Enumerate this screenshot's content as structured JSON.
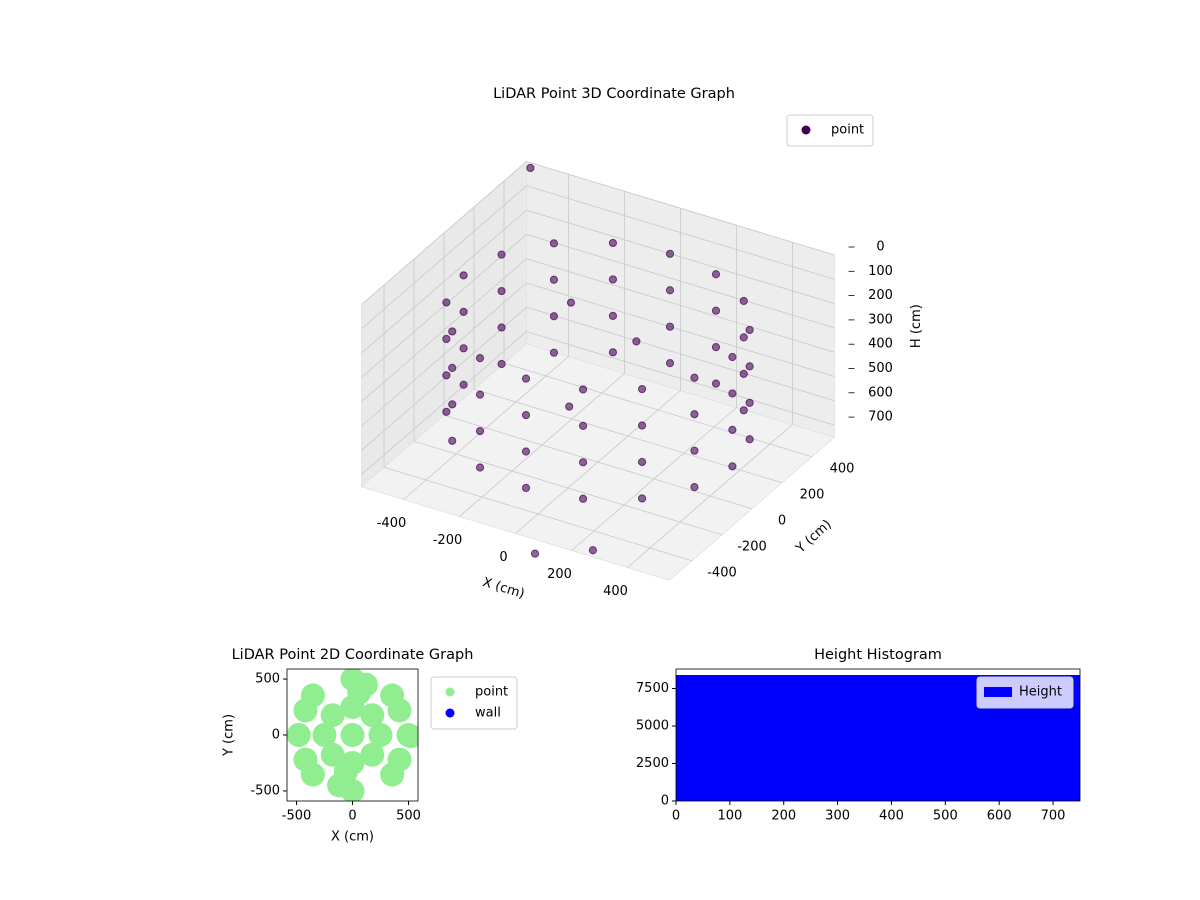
{
  "chart_data": [
    {
      "type": "scatter3d",
      "title": "LiDAR Point 3D Coordinate Graph",
      "xlabel": "X (cm)",
      "ylabel": "Y (cm)",
      "zlabel": "H (cm)",
      "xlim": [
        -550,
        550
      ],
      "ylim": [
        -550,
        550
      ],
      "zlim": [
        750,
        0
      ],
      "xticks": [
        -400,
        -200,
        0,
        200,
        400
      ],
      "yticks": [
        -400,
        -200,
        0,
        200,
        400
      ],
      "zticks": [
        0,
        100,
        200,
        300,
        400,
        500,
        600,
        700
      ],
      "grid": true,
      "legend": "upper right",
      "series": [
        {
          "name": "point",
          "color": "#440154",
          "x": [
            480,
            443,
            339,
            184,
            0,
            -184,
            -339,
            -443,
            -480,
            -443,
            -339,
            -184,
            0,
            184,
            339,
            443,
            480,
            443,
            339,
            184,
            0,
            -184,
            -339,
            -443,
            -480,
            -443,
            -339,
            -184,
            0,
            184,
            339,
            443,
            480,
            443,
            339,
            184,
            0,
            -184,
            -339,
            -443,
            -480,
            -443,
            -339,
            -184,
            0,
            184,
            339,
            443,
            480,
            443,
            339,
            184,
            0,
            -184,
            -339,
            -443,
            -480,
            -443,
            -339,
            -184,
            0,
            184,
            339,
            443,
            -150,
            -60,
            30,
            -520,
            150,
            330
          ],
          "y": [
            0,
            184,
            339,
            443,
            480,
            443,
            339,
            184,
            0,
            -184,
            -339,
            -443,
            -480,
            -443,
            -339,
            -184,
            0,
            184,
            339,
            443,
            480,
            443,
            339,
            184,
            0,
            -184,
            -339,
            -443,
            -480,
            -443,
            -339,
            -184,
            0,
            184,
            339,
            443,
            480,
            443,
            339,
            184,
            0,
            -184,
            -339,
            -443,
            -480,
            -443,
            -339,
            -184,
            0,
            184,
            339,
            443,
            480,
            443,
            339,
            184,
            0,
            -184,
            -339,
            -443,
            -480,
            -443,
            -339,
            -184,
            100,
            -80,
            200,
            520,
            -700,
            -650
          ],
          "z": [
            150,
            150,
            150,
            150,
            150,
            150,
            150,
            150,
            150,
            150,
            150,
            150,
            150,
            150,
            150,
            150,
            300,
            300,
            300,
            300,
            300,
            300,
            300,
            300,
            300,
            300,
            300,
            300,
            300,
            300,
            300,
            300,
            450,
            450,
            450,
            450,
            450,
            450,
            450,
            450,
            450,
            450,
            450,
            450,
            450,
            450,
            450,
            450,
            600,
            600,
            600,
            600,
            600,
            600,
            600,
            600,
            600,
            600,
            600,
            600,
            600,
            600,
            600,
            600,
            200,
            500,
            350,
            0,
            700,
            650
          ]
        }
      ]
    },
    {
      "type": "scatter",
      "title": "LiDAR Point 2D Coordinate Graph",
      "xlabel": "X (cm)",
      "ylabel": "Y (cm)",
      "xlim": [
        -585,
        585
      ],
      "ylim": [
        -590,
        590
      ],
      "xticks": [
        -500,
        0,
        500
      ],
      "yticks": [
        -500,
        0,
        500
      ],
      "legend": "outside right",
      "series": [
        {
          "name": "point",
          "color": "#90ee90",
          "x": [
            500,
            354,
            0,
            -354,
            -480,
            -354,
            0,
            354,
            250,
            0,
            -250,
            0,
            0,
            177,
            -177,
            -177,
            177,
            420,
            420,
            -420,
            -420,
            120,
            -120,
            520,
            -60,
            60
          ],
          "y": [
            0,
            354,
            500,
            354,
            0,
            -354,
            -500,
            -354,
            0,
            250,
            0,
            -250,
            0,
            177,
            177,
            -177,
            -177,
            220,
            -220,
            220,
            -220,
            450,
            -450,
            -10,
            -330,
            380
          ]
        },
        {
          "name": "wall",
          "color": "#0000ff",
          "x": [],
          "y": []
        }
      ]
    },
    {
      "type": "hist",
      "title": "Height Histogram",
      "series": [
        {
          "name": "Height",
          "color": "#0000ff",
          "bins": [
            0,
            750
          ],
          "counts": [
            8400
          ]
        }
      ],
      "xlim": [
        0,
        750
      ],
      "ylim": [
        0,
        8800
      ],
      "xticks": [
        0,
        100,
        200,
        300,
        400,
        500,
        600,
        700
      ],
      "yticks": [
        0,
        2500,
        5000,
        7500
      ],
      "legend": "upper right"
    }
  ]
}
